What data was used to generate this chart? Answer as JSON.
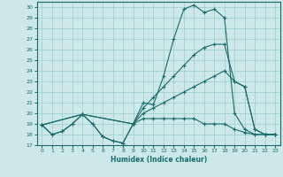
{
  "xlabel": "Humidex (Indice chaleur)",
  "xlim": [
    -0.5,
    23.5
  ],
  "ylim": [
    17,
    30.5
  ],
  "yticks": [
    17,
    18,
    19,
    20,
    21,
    22,
    23,
    24,
    25,
    26,
    27,
    28,
    29,
    30
  ],
  "xticks": [
    0,
    1,
    2,
    3,
    4,
    5,
    6,
    7,
    8,
    9,
    10,
    11,
    12,
    13,
    14,
    15,
    16,
    17,
    18,
    19,
    20,
    21,
    22,
    23
  ],
  "bg_color": "#cce8e8",
  "line_color": "#1a6b6b",
  "grid_color": "#99cccc",
  "line1_x": [
    0,
    1,
    2,
    3,
    4,
    5,
    6,
    7,
    8,
    9,
    10,
    11,
    12,
    13,
    14,
    15,
    16,
    17,
    18,
    19,
    20,
    21,
    22,
    23
  ],
  "line1_y": [
    18.9,
    18.0,
    18.3,
    19.0,
    19.9,
    19.0,
    17.8,
    17.4,
    17.2,
    19.0,
    19.5,
    19.5,
    19.5,
    19.5,
    19.5,
    19.5,
    19.0,
    19.0,
    19.0,
    18.5,
    18.2,
    18.0,
    18.0,
    18.0
  ],
  "line2_x": [
    0,
    1,
    2,
    3,
    4,
    5,
    6,
    7,
    8,
    9,
    10,
    11,
    12,
    13,
    14,
    15,
    16,
    17,
    18,
    19,
    20,
    21,
    22,
    23
  ],
  "line2_y": [
    18.9,
    18.0,
    18.3,
    19.0,
    19.9,
    19.0,
    17.8,
    17.4,
    17.2,
    19.0,
    21.0,
    20.8,
    23.5,
    27.0,
    29.8,
    30.2,
    29.5,
    29.8,
    29.0,
    20.0,
    18.5,
    18.0,
    18.0,
    18.0
  ],
  "line3_x": [
    0,
    4,
    9,
    10,
    11,
    12,
    13,
    14,
    15,
    16,
    17,
    18,
    19,
    20,
    21,
    22,
    23
  ],
  "line3_y": [
    18.9,
    19.9,
    19.0,
    20.5,
    21.5,
    22.5,
    23.5,
    24.5,
    25.5,
    26.2,
    26.5,
    26.5,
    23.0,
    22.5,
    18.5,
    18.0,
    18.0
  ],
  "line4_x": [
    0,
    4,
    9,
    10,
    11,
    12,
    13,
    14,
    15,
    16,
    17,
    18,
    19,
    20,
    21,
    22,
    23
  ],
  "line4_y": [
    18.9,
    19.9,
    19.0,
    20.0,
    20.5,
    21.0,
    21.5,
    22.0,
    22.5,
    23.0,
    23.5,
    24.0,
    23.0,
    22.5,
    18.5,
    18.0,
    18.0
  ]
}
